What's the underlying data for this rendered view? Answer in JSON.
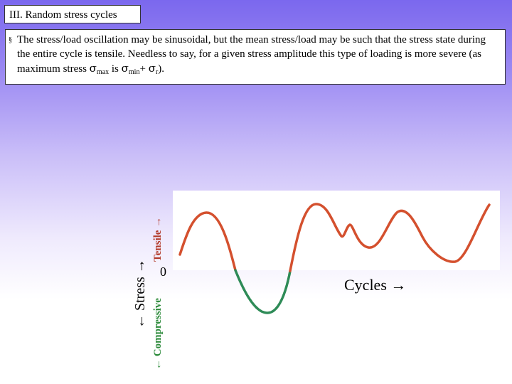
{
  "slide": {
    "title": "III. Random stress cycles",
    "bullet_symbol": "§",
    "text_part1": "The stress/load oscillation may be sinusoidal, but the mean stress/load may be such that the stress state during the entire cycle is tensile. Needless to say, for a given stress amplitude this type of loading is more severe (as maximum stress ",
    "sigma": "σ",
    "sub_max": "max",
    "text_is": " is ",
    "sub_min": "min",
    "text_plus": "+ ",
    "sub_r": "r",
    "text_end": ")."
  },
  "diagram": {
    "y_axis_label": "← Stress →",
    "tensile_label": "Tensile →",
    "compressive_label": "← Compressive",
    "zero_label": "0",
    "x_axis_label": "Cycles →",
    "tensile_color": "#d4502e",
    "compressive_color": "#2e8b57"
  }
}
